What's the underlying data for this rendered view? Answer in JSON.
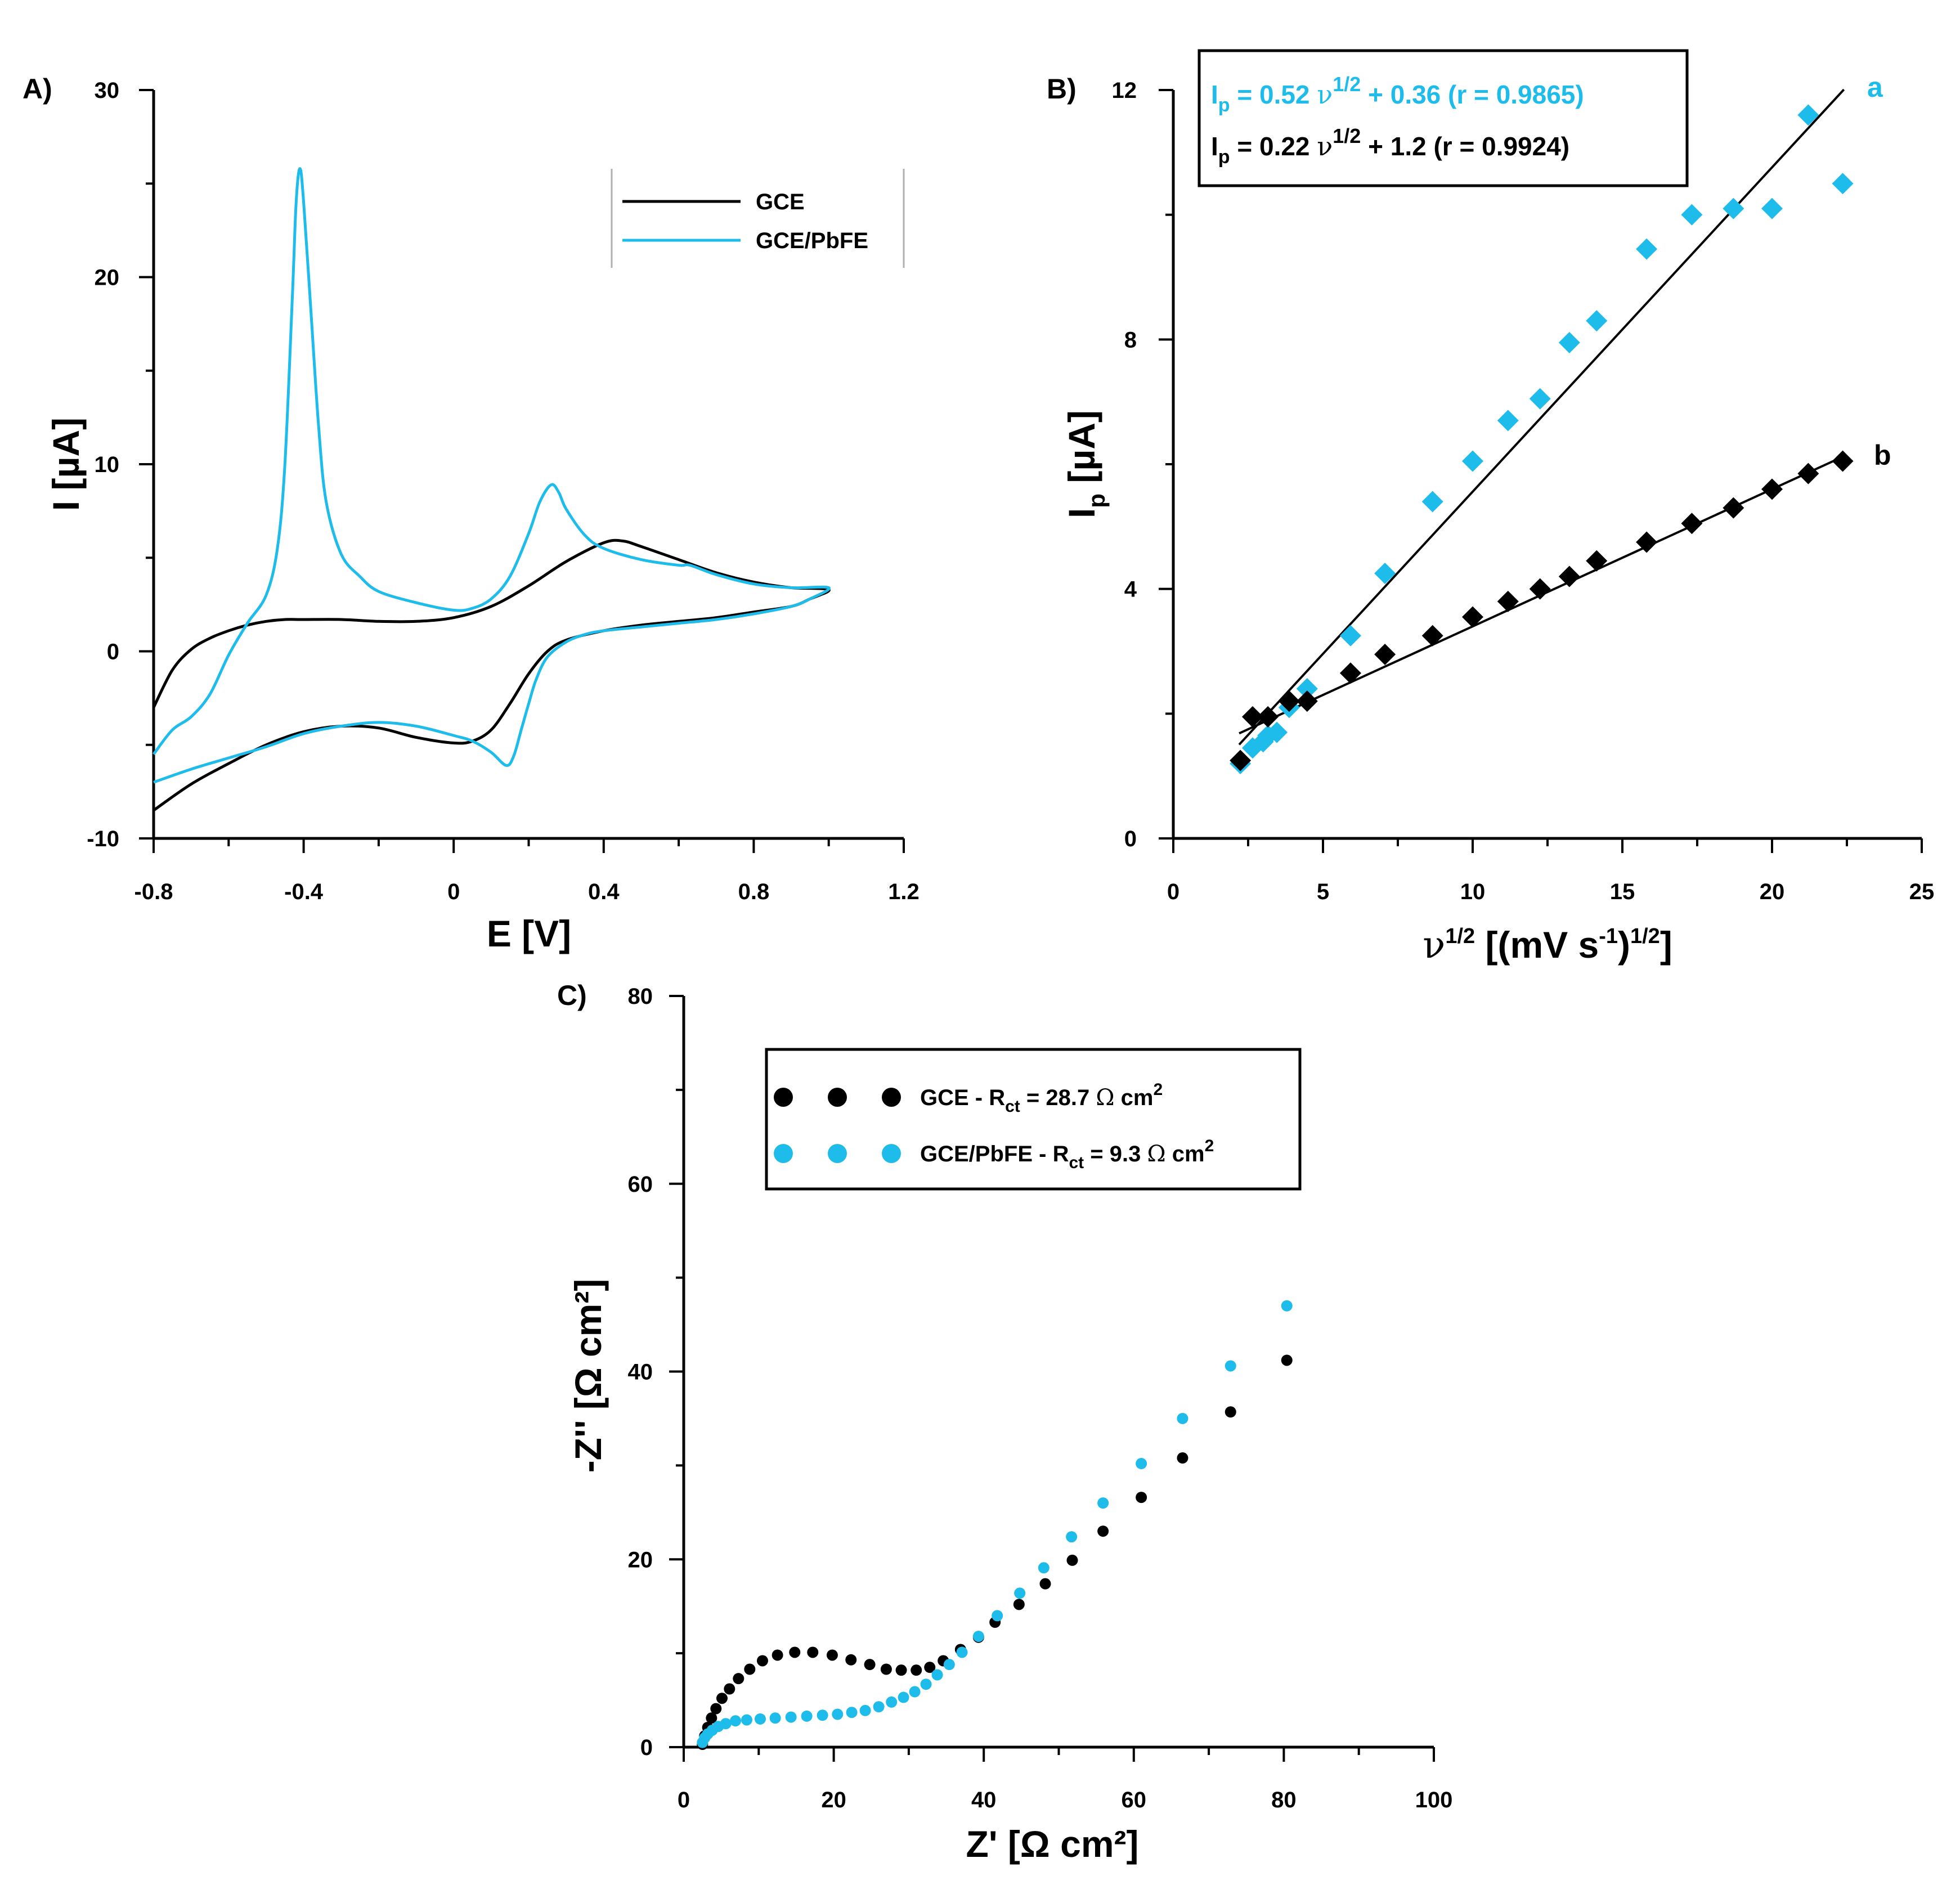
{
  "colors": {
    "black": "#000000",
    "blue": "#1EBCEB"
  },
  "chart_data": [
    {
      "id": "A",
      "panel_label": "A)",
      "type": "line",
      "xlabel": "E [V]",
      "ylabel": "I [µA]",
      "xlim": [
        -0.8,
        1.2
      ],
      "ylim": [
        -10,
        30
      ],
      "xticks": [
        "-0.8",
        "-0.4",
        "0",
        "0.4",
        "0.8",
        "1.2"
      ],
      "yticks": [
        "-10",
        "0",
        "10",
        "20",
        "30"
      ],
      "legend": [
        "GCE",
        "GCE/PbFE"
      ],
      "series": [
        {
          "name": "GCE",
          "color": "#000000",
          "x": [
            -0.8,
            -0.75,
            -0.7,
            -0.65,
            -0.6,
            -0.55,
            -0.5,
            -0.45,
            -0.4,
            -0.3,
            -0.2,
            -0.1,
            0.0,
            0.1,
            0.2,
            0.3,
            0.4,
            0.45,
            0.5,
            0.6,
            0.7,
            0.8,
            0.9,
            1.0,
            0.95,
            0.9,
            0.8,
            0.7,
            0.6,
            0.5,
            0.4,
            0.3,
            0.25,
            0.2,
            0.15,
            0.1,
            0.05,
            0.0,
            -0.1,
            -0.2,
            -0.3,
            -0.4,
            -0.5,
            -0.6,
            -0.7,
            -0.8
          ],
          "y": [
            -3.0,
            -1.0,
            0.1,
            0.7,
            1.1,
            1.4,
            1.6,
            1.7,
            1.7,
            1.7,
            1.6,
            1.6,
            1.8,
            2.4,
            3.5,
            4.8,
            5.8,
            5.9,
            5.6,
            4.9,
            4.2,
            3.7,
            3.4,
            3.3,
            2.8,
            2.4,
            2.1,
            1.8,
            1.6,
            1.4,
            1.1,
            0.6,
            0.0,
            -1.2,
            -2.8,
            -4.2,
            -4.8,
            -4.9,
            -4.6,
            -4.1,
            -4.0,
            -4.3,
            -5.0,
            -6.0,
            -7.1,
            -8.5
          ]
        },
        {
          "name": "GCE/PbFE",
          "color": "#1EBCEB",
          "x": [
            -0.8,
            -0.75,
            -0.7,
            -0.65,
            -0.6,
            -0.55,
            -0.5,
            -0.47,
            -0.45,
            -0.43,
            -0.42,
            -0.41,
            -0.4,
            -0.38,
            -0.36,
            -0.34,
            -0.3,
            -0.25,
            -0.2,
            -0.1,
            0.0,
            0.05,
            0.1,
            0.15,
            0.2,
            0.23,
            0.26,
            0.28,
            0.3,
            0.35,
            0.4,
            0.5,
            0.6,
            0.63,
            0.7,
            0.8,
            0.9,
            1.0,
            0.95,
            0.9,
            0.8,
            0.7,
            0.6,
            0.5,
            0.4,
            0.35,
            0.3,
            0.25,
            0.22,
            0.2,
            0.18,
            0.16,
            0.14,
            0.1,
            0.05,
            0.0,
            -0.1,
            -0.2,
            -0.3,
            -0.4,
            -0.5,
            -0.6,
            -0.7,
            -0.8
          ],
          "y": [
            -5.5,
            -4.2,
            -3.5,
            -2.3,
            -0.2,
            1.5,
            3.0,
            5.5,
            10.0,
            19.0,
            24.0,
            25.8,
            24.0,
            18.0,
            12.0,
            8.0,
            5.2,
            4.0,
            3.2,
            2.6,
            2.2,
            2.3,
            2.8,
            4.0,
            6.3,
            8.0,
            8.9,
            8.5,
            7.6,
            6.2,
            5.5,
            4.9,
            4.6,
            4.6,
            4.1,
            3.6,
            3.4,
            3.4,
            2.8,
            2.4,
            2.0,
            1.7,
            1.5,
            1.3,
            1.1,
            0.9,
            0.5,
            -0.3,
            -1.5,
            -2.8,
            -4.2,
            -5.6,
            -6.1,
            -5.4,
            -4.8,
            -4.5,
            -4.0,
            -3.8,
            -4.0,
            -4.4,
            -5.1,
            -5.7,
            -6.3,
            -7.0
          ]
        }
      ]
    },
    {
      "id": "B",
      "panel_label": "B)",
      "type": "scatter",
      "xlabel": "ν¹ᐟ² [(mV s⁻¹)¹ᐟ²]",
      "xlabel_parts": {
        "nu": "ν",
        "p1": "1/2",
        "m": " [(mV s",
        "p2": "-1",
        "e": ")",
        "p3": "1/2",
        "c": "]"
      },
      "ylabel_parts": {
        "main": "I",
        "sub": "p",
        "rest": " [µA]"
      },
      "xlim": [
        0,
        25
      ],
      "ylim": [
        0,
        12
      ],
      "xticks": [
        "0",
        "5",
        "10",
        "15",
        "20",
        "25"
      ],
      "yticks": [
        "0",
        "4",
        "8",
        "12"
      ],
      "equations": [
        {
          "color": "#1EBCEB",
          "lhs": "I",
          "sub": "p",
          "text1": " = 0.52 ",
          "nu": "ν",
          "sup": "1/2",
          "text2": " + 0.36 (r = 0.9865)"
        },
        {
          "color": "#000000",
          "lhs": "I",
          "sub": "p",
          "text1": " = 0.22 ",
          "nu": "ν",
          "sup": "1/2",
          "text2": " + 1.2 (r = 0.9924)"
        }
      ],
      "series": [
        {
          "name": "a",
          "color": "#1EBCEB",
          "x": [
            2.24,
            2.65,
            3.0,
            3.16,
            3.46,
            3.87,
            4.47,
            5.92,
            7.07,
            8.66,
            10.0,
            11.18,
            12.25,
            13.23,
            14.14,
            15.81,
            17.32,
            18.71,
            20.0,
            21.21,
            22.36
          ],
          "y": [
            1.2,
            1.45,
            1.55,
            1.65,
            1.7,
            2.1,
            2.4,
            3.25,
            4.25,
            5.4,
            6.05,
            6.7,
            7.05,
            7.95,
            8.3,
            9.45,
            10.0,
            10.1,
            10.1,
            11.6,
            10.5
          ],
          "fit": {
            "slope": 0.52,
            "intercept": 0.36,
            "x_range": [
              2.2,
              22.4
            ]
          }
        },
        {
          "name": "b",
          "color": "#000000",
          "x": [
            2.24,
            2.65,
            3.16,
            3.87,
            4.47,
            5.92,
            7.07,
            8.66,
            10.0,
            11.18,
            12.25,
            13.23,
            14.14,
            15.81,
            17.32,
            18.71,
            20.0,
            21.21,
            22.36
          ],
          "y": [
            1.25,
            1.95,
            1.95,
            2.2,
            2.2,
            2.65,
            2.95,
            3.25,
            3.55,
            3.8,
            4.0,
            4.2,
            4.45,
            4.75,
            5.05,
            5.3,
            5.6,
            5.85,
            6.05
          ],
          "fit": {
            "slope": 0.22,
            "intercept": 1.2,
            "x_range": [
              2.2,
              22.4
            ]
          }
        }
      ]
    },
    {
      "id": "C",
      "panel_label": "C)",
      "type": "scatter",
      "xlabel": "Z' [Ω cm²]",
      "ylabel": "-Z'' [Ω cm²]",
      "xlim": [
        0,
        100
      ],
      "ylim": [
        0,
        80
      ],
      "xticks": [
        "0",
        "20",
        "40",
        "60",
        "80",
        "100"
      ],
      "yticks": [
        "0",
        "20",
        "40",
        "60",
        "80"
      ],
      "legend": [
        {
          "color": "#000000",
          "pre": "GCE - R",
          "sub": "ct",
          "post": " = 28.7 ",
          "omega": "Ω",
          "unit": " cm",
          "sup": "2"
        },
        {
          "color": "#1EBCEB",
          "pre": "GCE/PbFE - R",
          "sub": "ct",
          "post": " = 9.3 ",
          "omega": "Ω",
          "unit": " cm",
          "sup": "2"
        }
      ],
      "series": [
        {
          "name": "GCE",
          "color": "#000000",
          "x": [
            2.5,
            2.8,
            3.2,
            3.7,
            4.3,
            5.1,
            6.1,
            7.3,
            8.8,
            10.5,
            12.5,
            14.8,
            17.2,
            19.8,
            22.3,
            24.8,
            27.0,
            29.0,
            31.0,
            32.8,
            34.6,
            36.9,
            39.3,
            41.5,
            44.7,
            48.2,
            51.8,
            55.9,
            61.0,
            66.5,
            72.9,
            80.4
          ],
          "y": [
            0.3,
            1.2,
            2.1,
            3.1,
            4.1,
            5.2,
            6.2,
            7.3,
            8.3,
            9.2,
            9.8,
            10.1,
            10.1,
            9.8,
            9.3,
            8.8,
            8.3,
            8.2,
            8.2,
            8.5,
            9.2,
            10.4,
            11.7,
            13.3,
            15.2,
            17.4,
            19.9,
            23.0,
            26.6,
            30.8,
            35.7,
            41.2
          ]
        },
        {
          "name": "GCE/PbFE",
          "color": "#1EBCEB",
          "x": [
            2.5,
            2.8,
            3.2,
            3.8,
            4.6,
            5.6,
            6.9,
            8.4,
            10.2,
            12.2,
            14.3,
            16.4,
            18.5,
            20.5,
            22.4,
            24.2,
            26.0,
            27.7,
            29.3,
            30.8,
            32.3,
            33.8,
            35.4,
            37.1,
            39.3,
            41.8,
            44.8,
            48.0,
            51.7,
            55.9,
            61.0,
            66.5,
            72.9,
            80.4
          ],
          "y": [
            0.5,
            1.0,
            1.4,
            1.8,
            2.2,
            2.5,
            2.8,
            2.9,
            3.0,
            3.1,
            3.2,
            3.3,
            3.4,
            3.5,
            3.7,
            3.9,
            4.3,
            4.8,
            5.3,
            5.9,
            6.7,
            7.7,
            8.8,
            10.1,
            11.8,
            14.0,
            16.4,
            19.1,
            22.4,
            26.0,
            30.2,
            35.0,
            40.6,
            47.0
          ]
        }
      ]
    }
  ]
}
